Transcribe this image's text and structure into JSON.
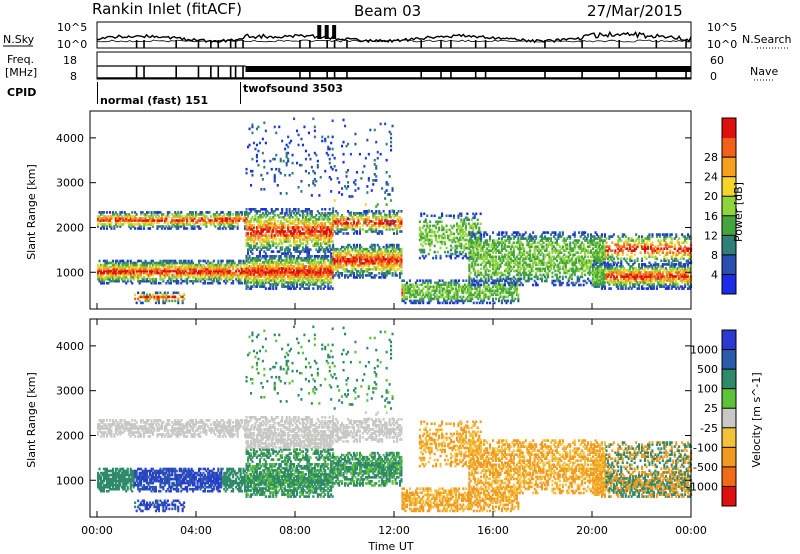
{
  "header": {
    "station": "Rankin Inlet (fitACF)",
    "beam": "Beam 03",
    "date": "27/Mar/2015"
  },
  "noise_panel": {
    "left_label": "N.Sky",
    "right_label": "N.Search",
    "left_ticks": [
      "10^5",
      "10^0"
    ],
    "right_ticks": [
      "10^5",
      "10^0"
    ]
  },
  "freq_panel": {
    "left_label_1": "Freq.",
    "left_label_2": "[MHz]",
    "right_label": "Nave",
    "left_ticks": [
      "18",
      "8"
    ],
    "right_ticks": [
      "60",
      "0"
    ]
  },
  "cpid": {
    "label": "CPID",
    "modes": [
      {
        "name": "normal (fast) 151",
        "start_hour": 0.0
      },
      {
        "name": "twofsound 3503",
        "start_hour": 6.0
      }
    ]
  },
  "chart_data": [
    {
      "type": "heatmap",
      "quantity": "Power",
      "ylabel": "Slant Range [km]",
      "yticks": [
        1000,
        2000,
        3000,
        4000
      ],
      "ylim": [
        180,
        4600
      ],
      "colorbar": {
        "label": "Power [dB]",
        "ticks": [
          "4",
          "8",
          "12",
          "16",
          "20",
          "24",
          "28"
        ],
        "colors": [
          "#1a2ce8",
          "#2a4fb0",
          "#2f7f78",
          "#44a53e",
          "#8ed43a",
          "#f2d72a",
          "#f6a020",
          "#f2601a",
          "#e01010"
        ]
      }
    },
    {
      "type": "heatmap",
      "quantity": "Velocity",
      "ylabel": "Slant Range [km]",
      "yticks": [
        1000,
        2000,
        3000,
        4000
      ],
      "ylim": [
        180,
        4600
      ],
      "xlabel": "Time UT",
      "xticks": [
        "00:00",
        "04:00",
        "08:00",
        "12:00",
        "16:00",
        "20:00",
        "00:00"
      ],
      "colorbar": {
        "label": "Velocity [m s^-1]",
        "ticks": [
          "1000",
          "500",
          "100",
          "25",
          "-25",
          "-100",
          "-500",
          "-1000"
        ],
        "colors": [
          "#2a3ad0",
          "#2a5cab",
          "#2f8a6a",
          "#5cc23a",
          "#c8c8c4",
          "#f2c23a",
          "#f29a20",
          "#f06a18",
          "#e01010"
        ]
      }
    }
  ]
}
